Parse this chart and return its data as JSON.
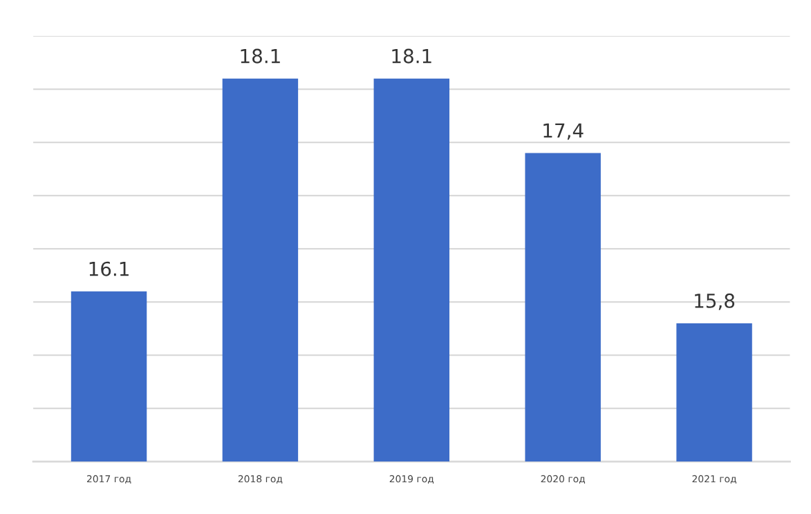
{
  "chart_data": {
    "type": "bar",
    "categories": [
      "2017 год",
      "2018 год",
      "2019 год",
      "2020 год",
      "2021 год"
    ],
    "values": [
      16.1,
      18.1,
      18.1,
      17.4,
      15.8
    ],
    "value_labels": [
      "16.1",
      "18.1",
      "18.1",
      "17,4",
      "15,8"
    ],
    "color": "#3d6cc8",
    "ylim": [
      14.5,
      18.5
    ],
    "yticks": [
      {
        "value": 14.5,
        "label": null
      },
      {
        "value": 15,
        "label": null
      },
      {
        "value": 15.5,
        "label": null
      },
      {
        "value": 16,
        "label": null
      },
      {
        "value": 16.5,
        "label": null
      },
      {
        "value": 17,
        "label": null
      },
      {
        "value": 17.5,
        "label": null
      },
      {
        "value": 18,
        "label": null
      },
      {
        "value": 18.5,
        "label": null
      }
    ],
    "tick_labels": "x",
    "grid": "y"
  }
}
